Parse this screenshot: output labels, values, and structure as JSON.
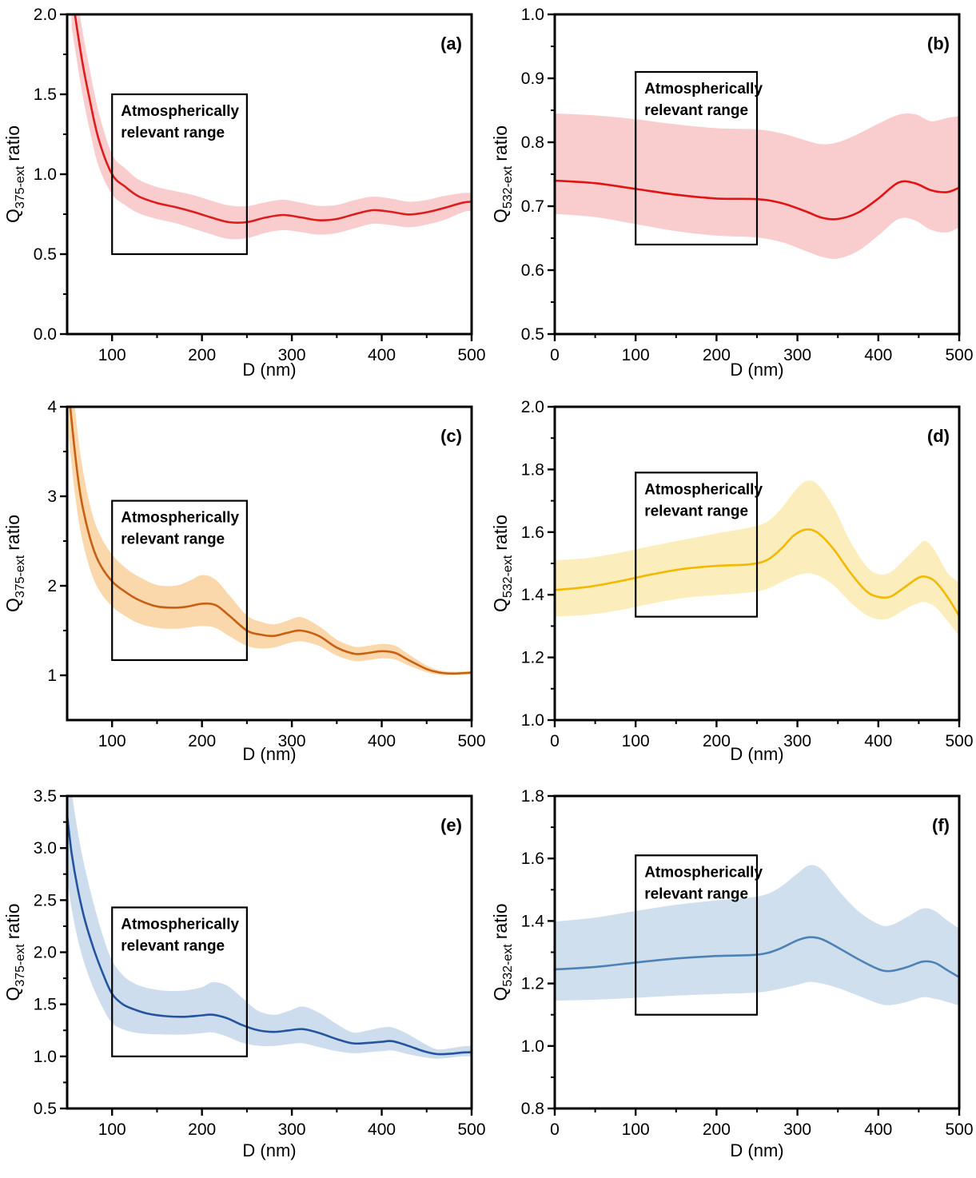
{
  "figure": {
    "description": "Six-panel figure of extinction efficiency ratios vs particle diameter with uncertainty bands",
    "xlabel": "D (nm)",
    "annotation_text": "Atmospherically relevant range"
  },
  "chart_data": [
    {
      "type": "line",
      "panel": "(a)",
      "xlabel": "D (nm)",
      "ylabel": {
        "base": "Q",
        "sub": "375-ext",
        "rest": "ratio"
      },
      "xlim": [
        50,
        500
      ],
      "ylim": [
        0.0,
        2.0
      ],
      "xticks": [
        100,
        200,
        300,
        400,
        500
      ],
      "yticks": [
        0.0,
        0.5,
        1.0,
        1.5,
        2.0
      ],
      "ytick_decimals": 1,
      "x_minor_step": 50,
      "y_minor_step": 0.25,
      "grid": false,
      "legend": "none",
      "line_color": "#dd1c1c",
      "band_color": "#f9cdcd",
      "annotation": [
        "Atmospherically",
        "relevant range"
      ],
      "box": {
        "x": [
          100,
          250
        ],
        "y": [
          0.5,
          1.5
        ]
      },
      "x": [
        55,
        60,
        67,
        75,
        85,
        100,
        115,
        130,
        150,
        170,
        190,
        210,
        230,
        250,
        270,
        290,
        310,
        330,
        350,
        370,
        390,
        410,
        430,
        450,
        470,
        490,
        500
      ],
      "y": [
        2.15,
        1.95,
        1.7,
        1.47,
        1.22,
        1.0,
        0.92,
        0.86,
        0.82,
        0.795,
        0.765,
        0.73,
        0.7,
        0.7,
        0.728,
        0.745,
        0.73,
        0.712,
        0.72,
        0.75,
        0.775,
        0.765,
        0.748,
        0.762,
        0.79,
        0.822,
        0.828
      ],
      "band_lo": [
        1.92,
        1.74,
        1.5,
        1.28,
        1.05,
        0.875,
        0.805,
        0.755,
        0.72,
        0.695,
        0.66,
        0.625,
        0.595,
        0.6,
        0.632,
        0.65,
        0.638,
        0.622,
        0.632,
        0.662,
        0.69,
        0.682,
        0.668,
        0.685,
        0.715,
        0.762,
        0.772
      ],
      "band_hi": [
        2.38,
        2.16,
        1.9,
        1.66,
        1.39,
        1.125,
        1.035,
        0.965,
        0.92,
        0.895,
        0.87,
        0.835,
        0.805,
        0.8,
        0.824,
        0.84,
        0.822,
        0.802,
        0.808,
        0.838,
        0.86,
        0.848,
        0.828,
        0.839,
        0.865,
        0.882,
        0.884
      ]
    },
    {
      "type": "line",
      "panel": "(b)",
      "xlabel": "D (nm)",
      "ylabel": {
        "base": "Q",
        "sub": "532-ext",
        "rest": "ratio"
      },
      "xlim": [
        0,
        500
      ],
      "ylim": [
        0.5,
        1.0
      ],
      "xticks": [
        0,
        100,
        200,
        300,
        400,
        500
      ],
      "yticks": [
        0.5,
        0.6,
        0.7,
        0.8,
        0.9,
        1.0
      ],
      "ytick_decimals": 1,
      "x_minor_step": 50,
      "y_minor_step": 0.05,
      "grid": false,
      "legend": "none",
      "line_color": "#e01414",
      "band_color": "#f9cdcd",
      "annotation": [
        "Atmospherically",
        "relevant range"
      ],
      "box": {
        "x": [
          100,
          250
        ],
        "y": [
          0.64,
          0.91
        ]
      },
      "x": [
        0,
        50,
        100,
        150,
        200,
        250,
        280,
        310,
        330,
        350,
        375,
        400,
        425,
        445,
        465,
        485,
        500
      ],
      "y": [
        0.74,
        0.736,
        0.727,
        0.718,
        0.712,
        0.711,
        0.705,
        0.692,
        0.682,
        0.68,
        0.69,
        0.712,
        0.737,
        0.736,
        0.725,
        0.722,
        0.729
      ],
      "band_lo": [
        0.688,
        0.683,
        0.672,
        0.661,
        0.654,
        0.651,
        0.644,
        0.63,
        0.621,
        0.618,
        0.63,
        0.654,
        0.68,
        0.678,
        0.663,
        0.659,
        0.667
      ],
      "band_hi": [
        0.845,
        0.842,
        0.836,
        0.828,
        0.822,
        0.82,
        0.814,
        0.803,
        0.797,
        0.8,
        0.813,
        0.829,
        0.843,
        0.844,
        0.833,
        0.838,
        0.841
      ]
    },
    {
      "type": "line",
      "panel": "(c)",
      "xlabel": "D (nm)",
      "ylabel": {
        "base": "Q",
        "sub": "375-ext",
        "rest": "ratio"
      },
      "xlim": [
        50,
        500
      ],
      "ylim": [
        0.5,
        4.0
      ],
      "xticks": [
        100,
        200,
        300,
        400,
        500
      ],
      "yticks": [
        1,
        2,
        3,
        4
      ],
      "ytick_decimals": 0,
      "x_minor_step": 50,
      "y_minor_step": 0.5,
      "grid": false,
      "legend": "none",
      "line_color": "#c86014",
      "band_color": "#fad8ac",
      "annotation": [
        "Atmospherically",
        "relevant range"
      ],
      "box": {
        "x": [
          100,
          250
        ],
        "y": [
          1.17,
          2.95
        ]
      },
      "x": [
        52,
        58,
        65,
        75,
        85,
        100,
        115,
        130,
        150,
        170,
        185,
        200,
        215,
        230,
        250,
        265,
        280,
        295,
        310,
        330,
        350,
        370,
        385,
        400,
        415,
        430,
        450,
        465,
        480,
        500
      ],
      "y": [
        4.15,
        3.55,
        3.0,
        2.55,
        2.27,
        2.05,
        1.93,
        1.84,
        1.77,
        1.755,
        1.77,
        1.8,
        1.785,
        1.67,
        1.5,
        1.455,
        1.44,
        1.475,
        1.5,
        1.44,
        1.31,
        1.24,
        1.25,
        1.27,
        1.25,
        1.17,
        1.07,
        1.03,
        1.02,
        1.03
      ],
      "band_lo": [
        3.65,
        3.08,
        2.6,
        2.2,
        1.96,
        1.77,
        1.66,
        1.58,
        1.53,
        1.52,
        1.535,
        1.55,
        1.53,
        1.44,
        1.33,
        1.3,
        1.31,
        1.355,
        1.38,
        1.33,
        1.22,
        1.16,
        1.17,
        1.19,
        1.175,
        1.11,
        1.035,
        1.005,
        1.0,
        1.01
      ],
      "band_hi": [
        4.65,
        4.05,
        3.45,
        2.92,
        2.6,
        2.35,
        2.2,
        2.1,
        2.01,
        2.0,
        2.05,
        2.12,
        2.07,
        1.9,
        1.67,
        1.6,
        1.57,
        1.61,
        1.65,
        1.55,
        1.4,
        1.32,
        1.33,
        1.35,
        1.33,
        1.235,
        1.11,
        1.055,
        1.04,
        1.05
      ]
    },
    {
      "type": "line",
      "panel": "(d)",
      "xlabel": "D (nm)",
      "ylabel": {
        "base": "Q",
        "sub": "532-ext",
        "rest": "ratio"
      },
      "xlim": [
        0,
        500
      ],
      "ylim": [
        1.0,
        2.0
      ],
      "xticks": [
        0,
        100,
        200,
        300,
        400,
        500
      ],
      "yticks": [
        1.0,
        1.2,
        1.4,
        1.6,
        1.8,
        2.0
      ],
      "ytick_decimals": 1,
      "x_minor_step": 50,
      "y_minor_step": 0.1,
      "grid": false,
      "legend": "none",
      "line_color": "#f3b800",
      "band_color": "#fceebc",
      "annotation": [
        "Atmospherically",
        "relevant range"
      ],
      "box": {
        "x": [
          100,
          250
        ],
        "y": [
          1.33,
          1.79
        ]
      },
      "x": [
        0,
        40,
        80,
        120,
        160,
        200,
        240,
        262,
        280,
        295,
        310,
        325,
        345,
        365,
        385,
        400,
        415,
        432,
        448,
        458,
        470,
        485,
        500
      ],
      "y": [
        1.415,
        1.425,
        1.443,
        1.465,
        1.483,
        1.492,
        1.497,
        1.51,
        1.547,
        1.588,
        1.608,
        1.598,
        1.545,
        1.472,
        1.412,
        1.393,
        1.394,
        1.423,
        1.452,
        1.458,
        1.443,
        1.395,
        1.332
      ],
      "band_lo": [
        1.33,
        1.336,
        1.351,
        1.372,
        1.39,
        1.399,
        1.407,
        1.418,
        1.44,
        1.458,
        1.468,
        1.462,
        1.43,
        1.377,
        1.336,
        1.322,
        1.326,
        1.352,
        1.372,
        1.376,
        1.362,
        1.318,
        1.268
      ],
      "band_hi": [
        1.51,
        1.517,
        1.534,
        1.556,
        1.576,
        1.596,
        1.614,
        1.632,
        1.675,
        1.725,
        1.762,
        1.752,
        1.678,
        1.572,
        1.492,
        1.466,
        1.472,
        1.512,
        1.553,
        1.572,
        1.54,
        1.472,
        1.438
      ]
    },
    {
      "type": "line",
      "panel": "(e)",
      "xlabel": "D (nm)",
      "ylabel": {
        "base": "Q",
        "sub": "375-ext",
        "rest": "ratio"
      },
      "xlim": [
        50,
        500
      ],
      "ylim": [
        0.5,
        3.5
      ],
      "xticks": [
        100,
        200,
        300,
        400,
        500
      ],
      "yticks": [
        0.5,
        1.0,
        1.5,
        2.0,
        2.5,
        3.0,
        3.5
      ],
      "ytick_decimals": 1,
      "x_minor_step": 50,
      "y_minor_step": 0.25,
      "grid": false,
      "legend": "none",
      "line_color": "#24549e",
      "band_color": "#cdddee",
      "annotation": [
        "Atmospherically",
        "relevant range"
      ],
      "box": {
        "x": [
          100,
          250
        ],
        "y": [
          1.0,
          2.43
        ]
      },
      "x": [
        50,
        55,
        62,
        70,
        80,
        90,
        100,
        112,
        125,
        140,
        160,
        180,
        200,
        212,
        228,
        245,
        262,
        280,
        297,
        312,
        330,
        350,
        368,
        385,
        400,
        412,
        430,
        448,
        462,
        478,
        490,
        500
      ],
      "y": [
        3.32,
        2.95,
        2.6,
        2.3,
        2.02,
        1.79,
        1.6,
        1.5,
        1.45,
        1.41,
        1.386,
        1.38,
        1.394,
        1.4,
        1.366,
        1.3,
        1.252,
        1.235,
        1.25,
        1.262,
        1.226,
        1.166,
        1.125,
        1.13,
        1.14,
        1.146,
        1.1,
        1.046,
        1.022,
        1.026,
        1.038,
        1.04
      ],
      "band_lo": [
        2.72,
        2.42,
        2.12,
        1.87,
        1.64,
        1.46,
        1.32,
        1.26,
        1.23,
        1.215,
        1.21,
        1.21,
        1.224,
        1.23,
        1.19,
        1.13,
        1.102,
        1.1,
        1.118,
        1.126,
        1.09,
        1.05,
        1.03,
        1.04,
        1.05,
        1.056,
        1.02,
        0.99,
        0.978,
        0.99,
        1.0,
        1.0
      ],
      "band_hi": [
        3.95,
        3.55,
        3.15,
        2.8,
        2.45,
        2.15,
        1.92,
        1.78,
        1.7,
        1.655,
        1.63,
        1.632,
        1.665,
        1.712,
        1.68,
        1.56,
        1.44,
        1.4,
        1.438,
        1.478,
        1.42,
        1.31,
        1.23,
        1.25,
        1.276,
        1.278,
        1.21,
        1.12,
        1.068,
        1.08,
        1.096,
        1.1
      ]
    },
    {
      "type": "line",
      "panel": "(f)",
      "xlabel": "D (nm)",
      "ylabel": {
        "base": "Q",
        "sub": "532-ext",
        "rest": "ratio"
      },
      "xlim": [
        0,
        500
      ],
      "ylim": [
        0.8,
        1.8
      ],
      "xticks": [
        0,
        100,
        200,
        300,
        400,
        500
      ],
      "yticks": [
        0.8,
        1.0,
        1.2,
        1.4,
        1.6,
        1.8
      ],
      "ytick_decimals": 1,
      "x_minor_step": 50,
      "y_minor_step": 0.1,
      "grid": false,
      "legend": "none",
      "line_color": "#4e82b4",
      "band_color": "#cfdfee",
      "annotation": [
        "Atmospherically",
        "relevant range"
      ],
      "box": {
        "x": [
          100,
          250
        ],
        "y": [
          1.1,
          1.61
        ]
      },
      "x": [
        0,
        50,
        100,
        150,
        200,
        250,
        275,
        300,
        315,
        330,
        350,
        375,
        400,
        415,
        435,
        455,
        470,
        485,
        500
      ],
      "y": [
        1.245,
        1.253,
        1.267,
        1.28,
        1.288,
        1.292,
        1.308,
        1.338,
        1.348,
        1.342,
        1.315,
        1.278,
        1.246,
        1.24,
        1.252,
        1.27,
        1.266,
        1.243,
        1.22
      ],
      "band_lo": [
        1.145,
        1.148,
        1.154,
        1.161,
        1.166,
        1.171,
        1.181,
        1.196,
        1.205,
        1.2,
        1.186,
        1.161,
        1.136,
        1.131,
        1.141,
        1.156,
        1.151,
        1.141,
        1.13
      ],
      "band_hi": [
        1.398,
        1.411,
        1.432,
        1.452,
        1.466,
        1.478,
        1.502,
        1.552,
        1.578,
        1.565,
        1.5,
        1.432,
        1.39,
        1.386,
        1.412,
        1.44,
        1.432,
        1.402,
        1.376
      ]
    }
  ]
}
